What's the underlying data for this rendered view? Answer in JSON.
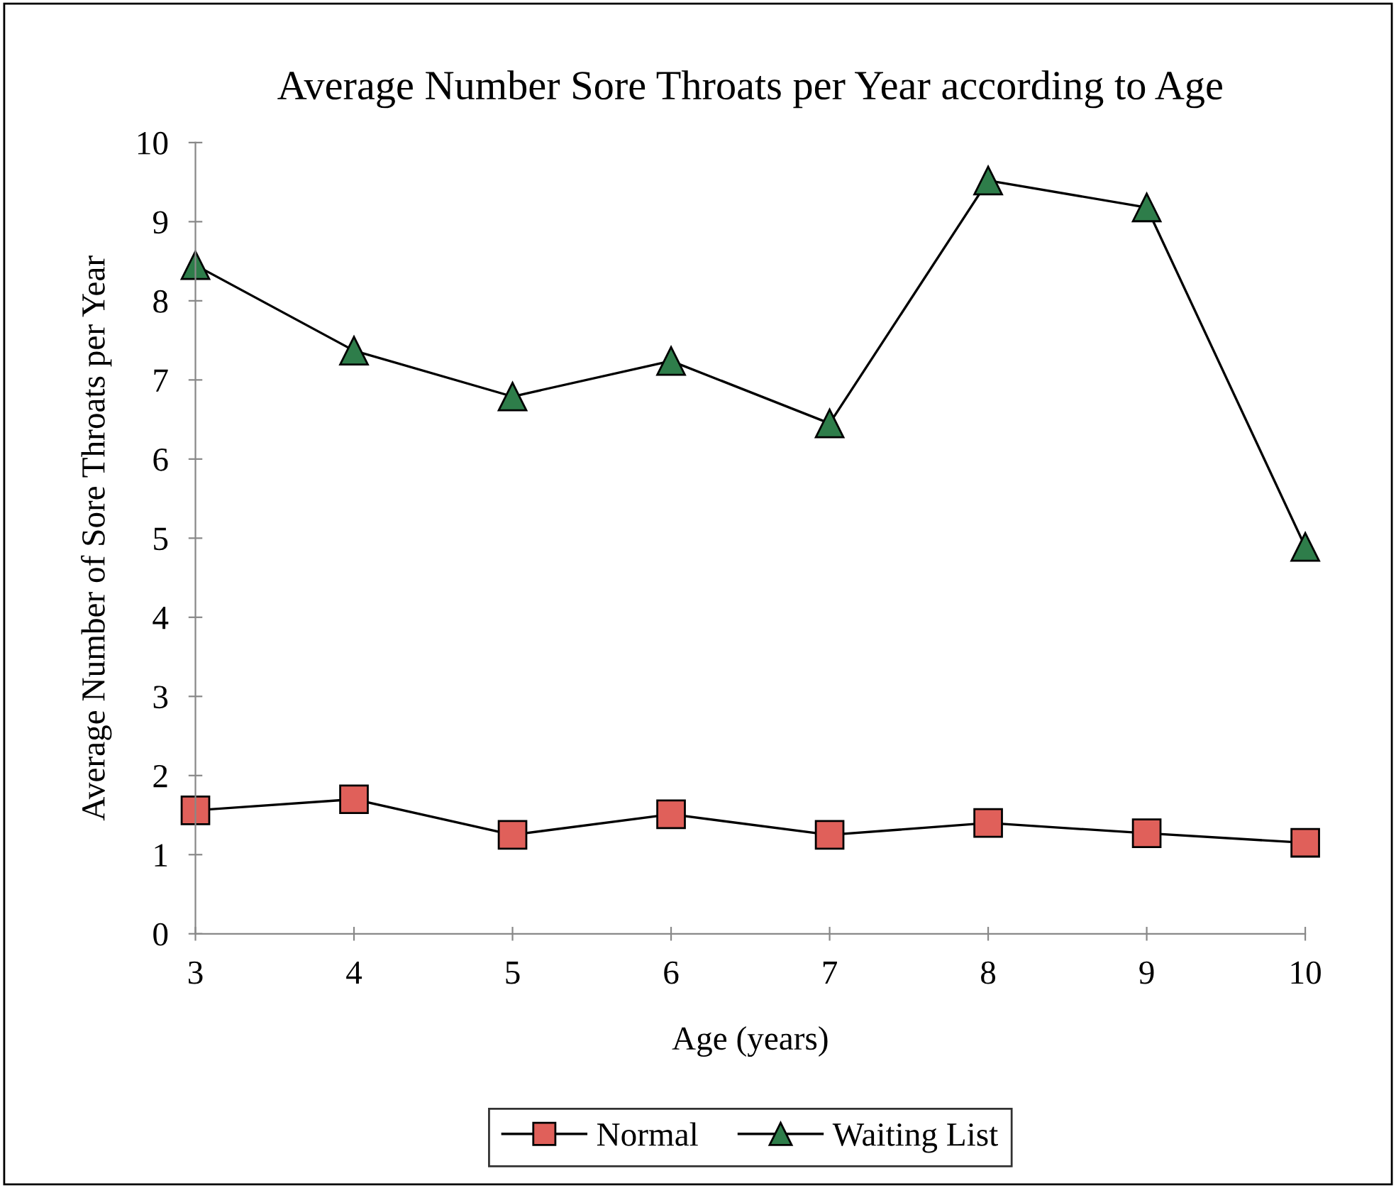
{
  "chart_data": {
    "type": "line",
    "title": "Average Number Sore Throats per Year according to Age",
    "xlabel": "Age (years)",
    "ylabel": "Average Number of Sore Throats per Year",
    "x": [
      3,
      4,
      5,
      6,
      7,
      8,
      9,
      10
    ],
    "series": [
      {
        "name": "Normal",
        "color": "#e0605a",
        "marker": "square",
        "values": [
          1.56,
          1.7,
          1.25,
          1.51,
          1.25,
          1.4,
          1.27,
          1.15
        ]
      },
      {
        "name": "Waiting List",
        "color": "#2e7d4a",
        "marker": "triangle",
        "values": [
          8.45,
          7.37,
          6.79,
          7.24,
          6.45,
          9.52,
          9.18,
          4.89
        ]
      }
    ],
    "xlim": [
      3,
      10
    ],
    "xticks": [
      3,
      4,
      5,
      6,
      7,
      8,
      9,
      10
    ],
    "ylim": [
      0,
      10
    ],
    "yticks": [
      0,
      1,
      2,
      3,
      4,
      5,
      6,
      7,
      8,
      9,
      10
    ],
    "grid": false,
    "legend": "bottom",
    "line_style": "solid"
  }
}
